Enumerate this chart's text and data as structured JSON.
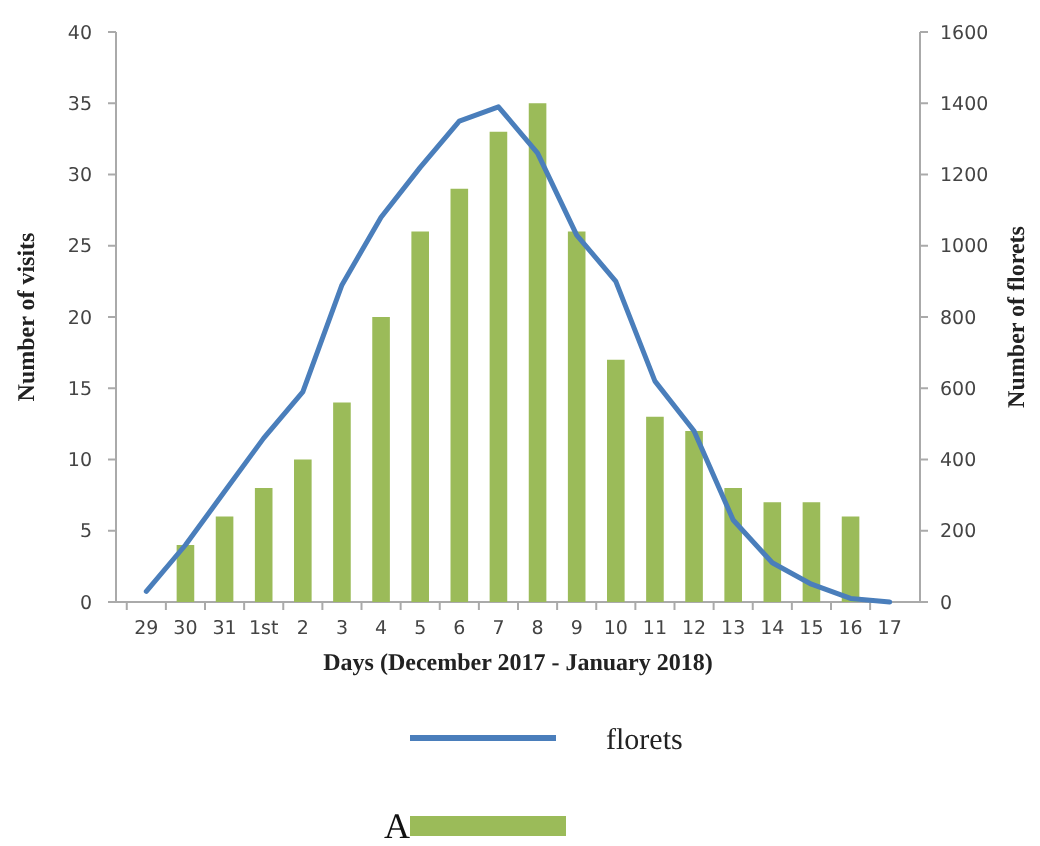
{
  "chart_data": {
    "type": "bar",
    "xlabel": "Days (December 2017 - January 2018)",
    "ylabel": "Number of visits",
    "y2label": "Number of florets",
    "categories": [
      "29",
      "30",
      "31",
      "1st",
      "2",
      "3",
      "4",
      "5",
      "6",
      "7",
      "8",
      "9",
      "10",
      "11",
      "12",
      "13",
      "14",
      "15",
      "16",
      "17"
    ],
    "series": [
      {
        "color": "#9bbb59",
        "values": [
          null,
          4,
          6,
          8,
          10,
          14,
          20,
          26,
          29,
          33,
          35,
          26,
          17,
          13,
          12,
          8,
          7,
          7,
          6,
          null
        ]
      },
      {
        "type": "line",
        "name": "florets",
        "color": "#4a7ebb",
        "axis": "y2",
        "values": [
          30,
          160,
          310,
          460,
          590,
          890,
          1080,
          1220,
          1350,
          1390,
          1260,
          1030,
          900,
          620,
          480,
          230,
          110,
          50,
          10,
          0
        ]
      }
    ],
    "ylim": [
      0,
      40
    ],
    "yticks": [
      0,
      5,
      10,
      15,
      20,
      25,
      30,
      35,
      40
    ],
    "y2lim": [
      0,
      1600
    ],
    "y2ticks": [
      0,
      200,
      400,
      600,
      800,
      1000,
      1200,
      1400,
      1600
    ],
    "grid": false,
    "legend": "bottom",
    "annotations": [
      "A"
    ]
  }
}
